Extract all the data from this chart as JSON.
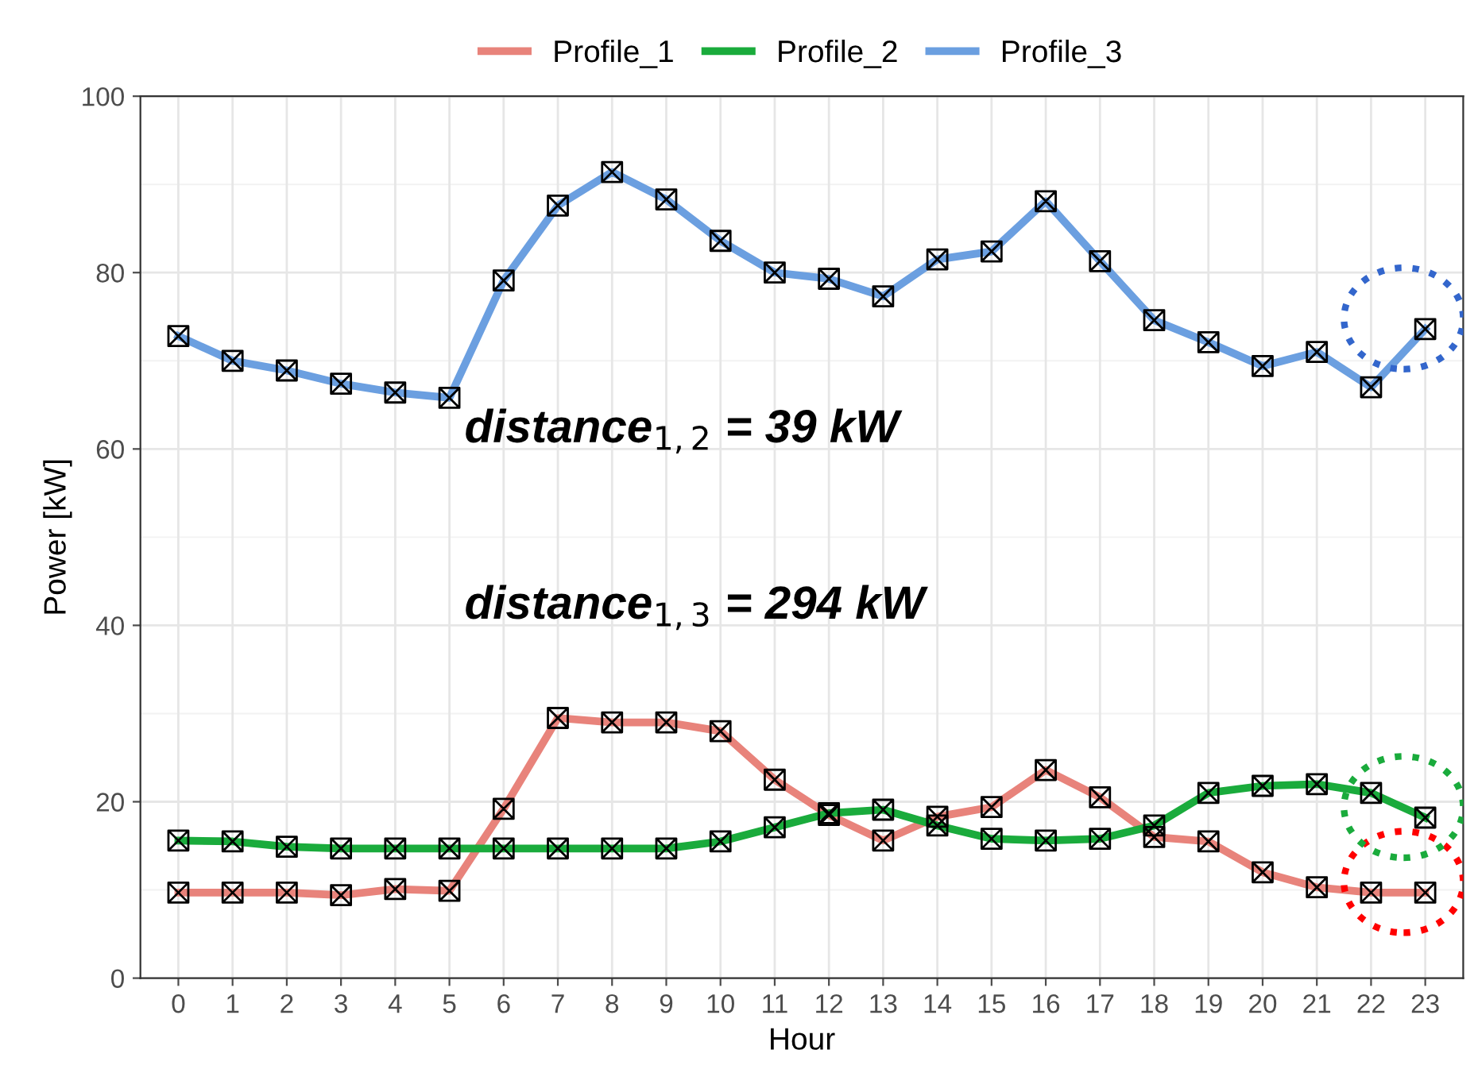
{
  "chart_data": {
    "type": "line",
    "xlabel": "Hour",
    "ylabel": "Power [kW]",
    "categories": [
      "0",
      "1",
      "2",
      "3",
      "4",
      "5",
      "6",
      "7",
      "8",
      "9",
      "10",
      "11",
      "12",
      "13",
      "14",
      "15",
      "16",
      "17",
      "18",
      "19",
      "20",
      "21",
      "22",
      "23"
    ],
    "series": [
      {
        "name": "Profile_1",
        "color": "#e8837b",
        "values": [
          9.7,
          9.7,
          9.7,
          9.4,
          10.1,
          9.9,
          19.2,
          29.5,
          29,
          29,
          28,
          22.5,
          18.5,
          15.6,
          18.3,
          19.4,
          23.6,
          20.5,
          16,
          15.5,
          12,
          10.3,
          9.7,
          9.7
        ]
      },
      {
        "name": "Profile_2",
        "color": "#1aab3c",
        "values": [
          15.6,
          15.5,
          14.9,
          14.7,
          14.7,
          14.7,
          14.7,
          14.7,
          14.7,
          14.7,
          15.5,
          17.1,
          18.7,
          19.1,
          17.3,
          15.8,
          15.6,
          15.8,
          17.3,
          21,
          21.8,
          22,
          21,
          18.2
        ]
      },
      {
        "name": "Profile_3",
        "color": "#6b9fe0",
        "values": [
          72.8,
          70,
          68.9,
          67.4,
          66.4,
          65.8,
          79.1,
          87.6,
          91.4,
          88.3,
          83.6,
          80,
          79.3,
          77.3,
          81.5,
          82.4,
          88.1,
          81.3,
          74.6,
          72.1,
          69.4,
          71,
          67,
          73.6
        ]
      }
    ],
    "ylim": [
      0,
      100
    ],
    "yticks": [
      0,
      20,
      40,
      60,
      80,
      100
    ],
    "grid": true,
    "legend": "top",
    "marker": "cross",
    "line_style": "solid",
    "annotations": [
      "distance$_{1,2}$ = 39 kW",
      "distance$_{1,3}$ = 294 kW"
    ]
  }
}
